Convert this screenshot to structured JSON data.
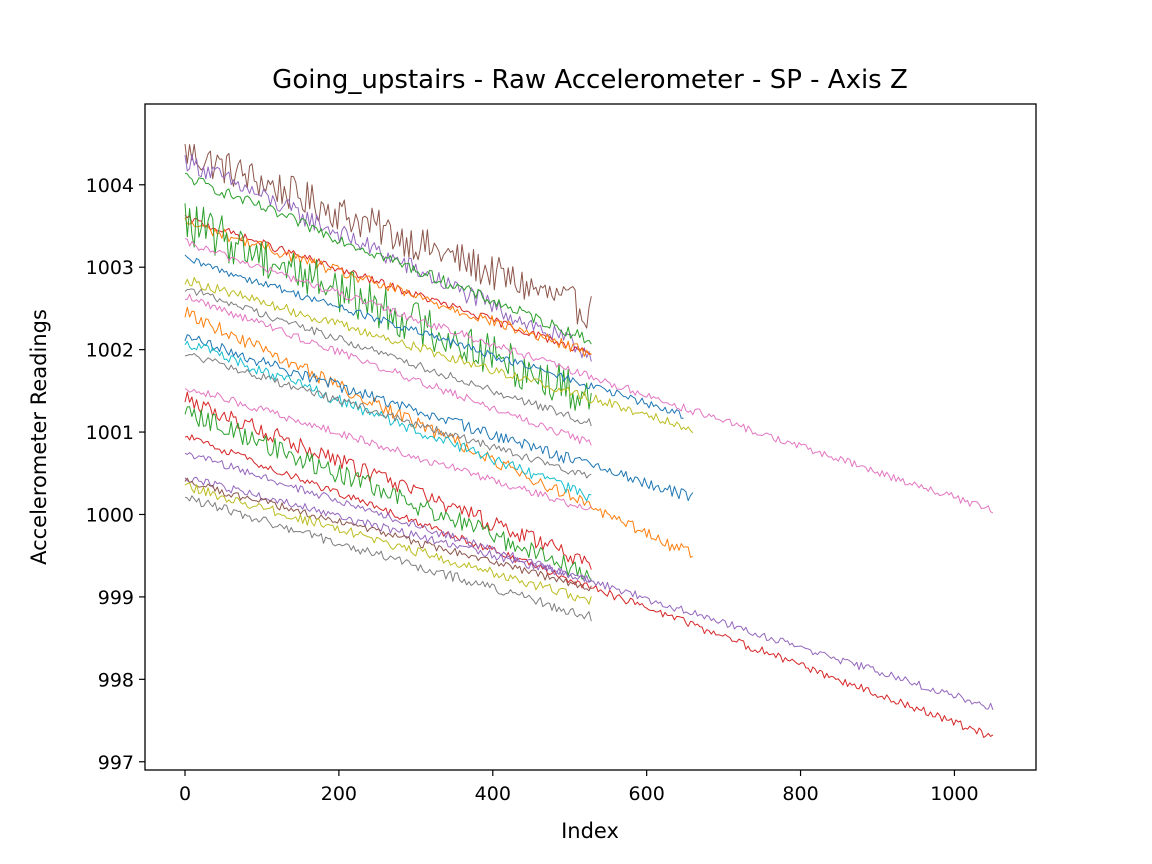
{
  "chart_data": {
    "type": "line",
    "title": "Going_upstairs - Raw Accelerometer - SP - Axis Z",
    "xlabel": "Index",
    "ylabel": "Accelerometer Readings",
    "xlim": [
      -52,
      1106
    ],
    "ylim": [
      996.9,
      1004.98
    ],
    "xticks": [
      0,
      200,
      400,
      600,
      800,
      1000
    ],
    "yticks": [
      997,
      998,
      999,
      1000,
      1001,
      1002,
      1003,
      1004
    ],
    "grid": false,
    "legend": "none",
    "noise_note": "series are noisy traces; start/end values read from the plot",
    "series": [
      {
        "color": "#8c564b",
        "x_end": 530,
        "y_start": 1004.4,
        "y_end": 1002.45,
        "noise": 0.22
      },
      {
        "color": "#9467bd",
        "x_end": 530,
        "y_start": 1004.3,
        "y_end": 1001.95,
        "noise": 0.12
      },
      {
        "color": "#2ca02c",
        "x_end": 530,
        "y_start": 1004.1,
        "y_end": 1002.1,
        "noise": 0.07
      },
      {
        "color": "#d62728",
        "x_end": 530,
        "y_start": 1003.6,
        "y_end": 1001.95,
        "noise": 0.05
      },
      {
        "color": "#ff7f0e",
        "x_end": 530,
        "y_start": 1003.55,
        "y_end": 1001.95,
        "noise": 0.07
      },
      {
        "color": "#2ca02c",
        "x_end": 530,
        "y_start": 1003.55,
        "y_end": 1001.4,
        "noise": 0.28
      },
      {
        "color": "#e377c2",
        "x_end": 1050,
        "y_start": 1003.3,
        "y_end": 1000.05,
        "noise": 0.05
      },
      {
        "color": "#1f77b4",
        "x_end": 650,
        "y_start": 1003.1,
        "y_end": 1001.2,
        "noise": 0.05
      },
      {
        "color": "#bcbd22",
        "x_end": 660,
        "y_start": 1002.85,
        "y_end": 1001.05,
        "noise": 0.06
      },
      {
        "color": "#7f7f7f",
        "x_end": 530,
        "y_start": 1002.75,
        "y_end": 1001.1,
        "noise": 0.05
      },
      {
        "color": "#e377c2",
        "x_end": 530,
        "y_start": 1002.65,
        "y_end": 1000.85,
        "noise": 0.05
      },
      {
        "color": "#ff7f0e",
        "x_end": 660,
        "y_start": 1002.45,
        "y_end": 999.5,
        "noise": 0.08
      },
      {
        "color": "#1f77b4",
        "x_end": 660,
        "y_start": 1002.15,
        "y_end": 1000.2,
        "noise": 0.07
      },
      {
        "color": "#17becf",
        "x_end": 530,
        "y_start": 1002.1,
        "y_end": 1000.2,
        "noise": 0.07
      },
      {
        "color": "#7f7f7f",
        "x_end": 530,
        "y_start": 1001.95,
        "y_end": 1000.45,
        "noise": 0.05
      },
      {
        "color": "#e377c2",
        "x_end": 530,
        "y_start": 1001.55,
        "y_end": 1000.05,
        "noise": 0.05
      },
      {
        "color": "#d62728",
        "x_end": 530,
        "y_start": 1001.4,
        "y_end": 999.4,
        "noise": 0.1
      },
      {
        "color": "#2ca02c",
        "x_end": 530,
        "y_start": 1001.25,
        "y_end": 999.25,
        "noise": 0.12
      },
      {
        "color": "#d62728",
        "x_end": 1050,
        "y_start": 1000.95,
        "y_end": 997.3,
        "noise": 0.05
      },
      {
        "color": "#9467bd",
        "x_end": 1050,
        "y_start": 1000.75,
        "y_end": 997.65,
        "noise": 0.05
      },
      {
        "color": "#9467bd",
        "x_end": 530,
        "y_start": 1000.45,
        "y_end": 999.2,
        "noise": 0.05
      },
      {
        "color": "#8c564b",
        "x_end": 530,
        "y_start": 1000.4,
        "y_end": 999.1,
        "noise": 0.05
      },
      {
        "color": "#bcbd22",
        "x_end": 530,
        "y_start": 1000.35,
        "y_end": 998.95,
        "noise": 0.06
      },
      {
        "color": "#7f7f7f",
        "x_end": 530,
        "y_start": 1000.2,
        "y_end": 998.75,
        "noise": 0.06
      }
    ]
  }
}
